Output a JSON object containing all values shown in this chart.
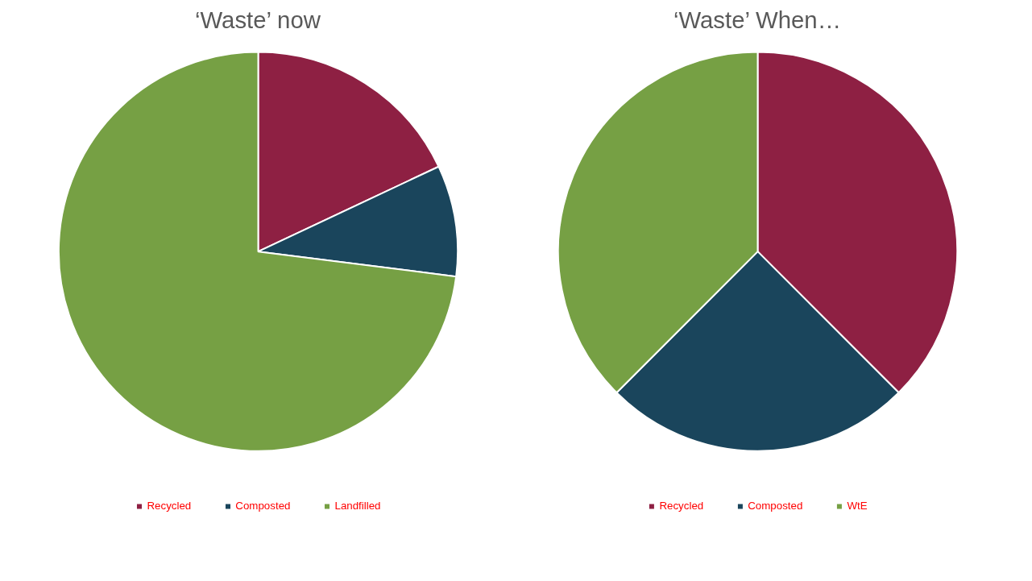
{
  "chart_data": [
    {
      "type": "pie",
      "title": "‘Waste’ now",
      "categories": [
        "Recycled",
        "Composted",
        "Landfilled"
      ],
      "values": [
        18,
        9,
        73
      ],
      "colors": [
        "#8e2043",
        "#1a455c",
        "#76a044"
      ],
      "legend": "bottom"
    },
    {
      "type": "pie",
      "title": "‘Waste’ When…",
      "categories": [
        "Recycled",
        "Composted",
        "WtE"
      ],
      "values": [
        37.5,
        25,
        37.5
      ],
      "colors": [
        "#8e2043",
        "#1a455c",
        "#76a044"
      ],
      "legend": "bottom"
    }
  ]
}
